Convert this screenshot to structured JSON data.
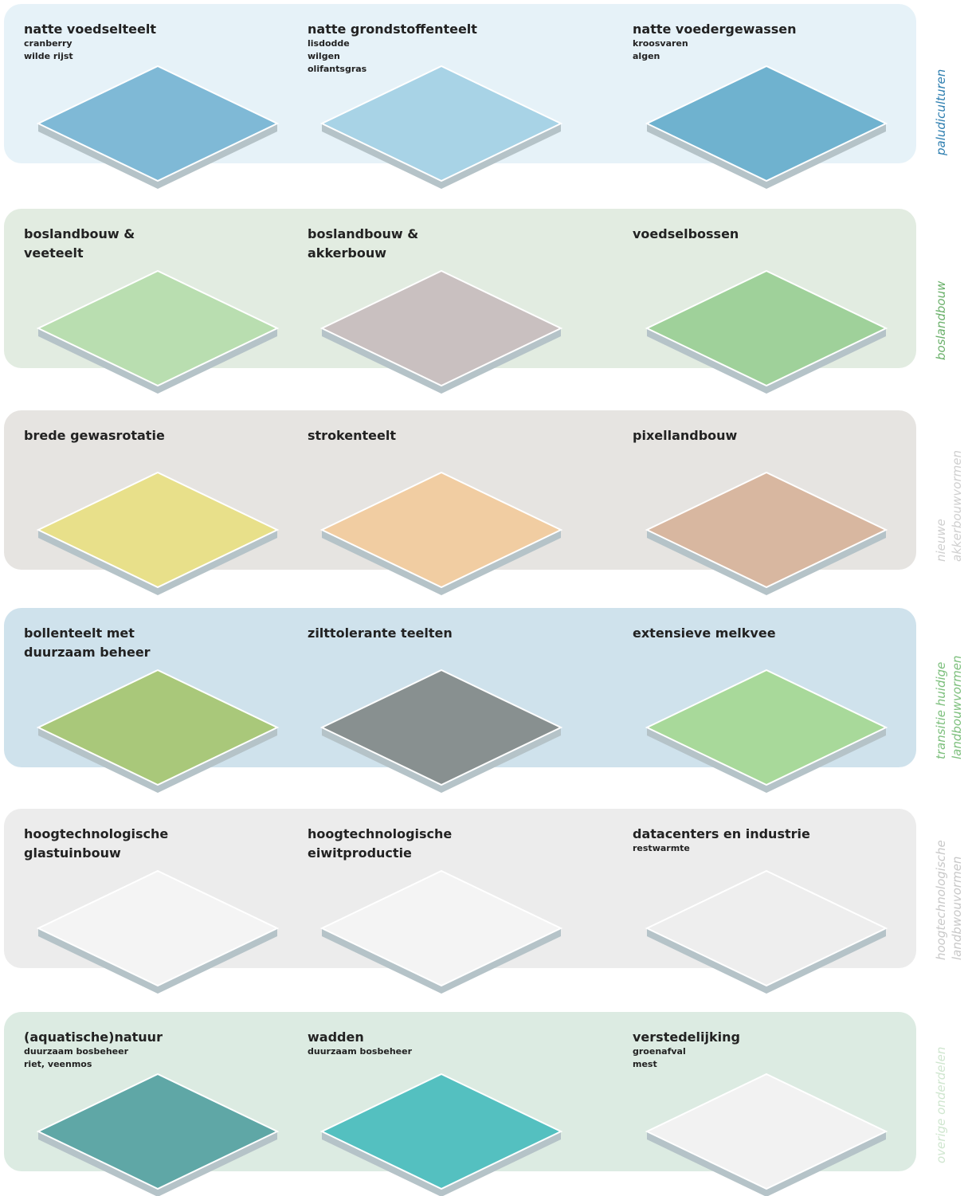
{
  "sections": [
    {
      "label": [
        "paludiculturen"
      ],
      "items": [
        {
          "title": [
            "natte voedselteelt"
          ],
          "lines": [
            "cranberry",
            "wilde rijst"
          ]
        },
        {
          "title": [
            "natte grondstoffenteelt"
          ],
          "lines": [
            "lisdodde",
            "wilgen",
            "olifantsgras"
          ]
        },
        {
          "title": [
            "natte voedergewassen"
          ],
          "lines": [
            "kroosvaren",
            "algen"
          ]
        }
      ]
    },
    {
      "label": [
        "boslandbouw"
      ],
      "items": [
        {
          "title": [
            "boslandbouw &",
            "veeteelt"
          ],
          "lines": []
        },
        {
          "title": [
            "boslandbouw &",
            "akkerbouw"
          ],
          "lines": []
        },
        {
          "title": [
            "voedselbossen"
          ],
          "lines": []
        }
      ]
    },
    {
      "label": [
        "nieuwe",
        "akkerbouwvormen"
      ],
      "items": [
        {
          "title": [
            "brede gewasrotatie"
          ],
          "lines": []
        },
        {
          "title": [
            "strokenteelt"
          ],
          "lines": []
        },
        {
          "title": [
            "pixellandbouw"
          ],
          "lines": []
        }
      ]
    },
    {
      "label": [
        "transitie huidige",
        "landbouwvormen"
      ],
      "items": [
        {
          "title": [
            "bollenteelt met",
            "duurzaam beheer"
          ],
          "lines": []
        },
        {
          "title": [
            "zilttolerante teelten"
          ],
          "lines": []
        },
        {
          "title": [
            "extensieve melkvee"
          ],
          "lines": []
        }
      ]
    },
    {
      "label": [
        "hoogtechnologische",
        "landbwouvormen"
      ],
      "items": [
        {
          "title": [
            "hoogtechnologische",
            "glastuinbouw"
          ],
          "lines": []
        },
        {
          "title": [
            "hoogtechnologische",
            "eiwitproductie"
          ],
          "lines": []
        },
        {
          "title": [
            "datacenters en industrie"
          ],
          "lines": [
            "restwarmte"
          ]
        }
      ]
    },
    {
      "label": [
        "overige onderdelen"
      ],
      "items": [
        {
          "title": [
            "(aquatische)natuur"
          ],
          "lines": [
            "duurzaam bosbeheer",
            "riet, veenmos"
          ]
        },
        {
          "title": [
            "wadden"
          ],
          "lines": [
            "duurzaam bosbeheer"
          ]
        },
        {
          "title": [
            "verstedelijking"
          ],
          "lines": [
            "groenafval",
            "mest"
          ]
        }
      ]
    }
  ]
}
